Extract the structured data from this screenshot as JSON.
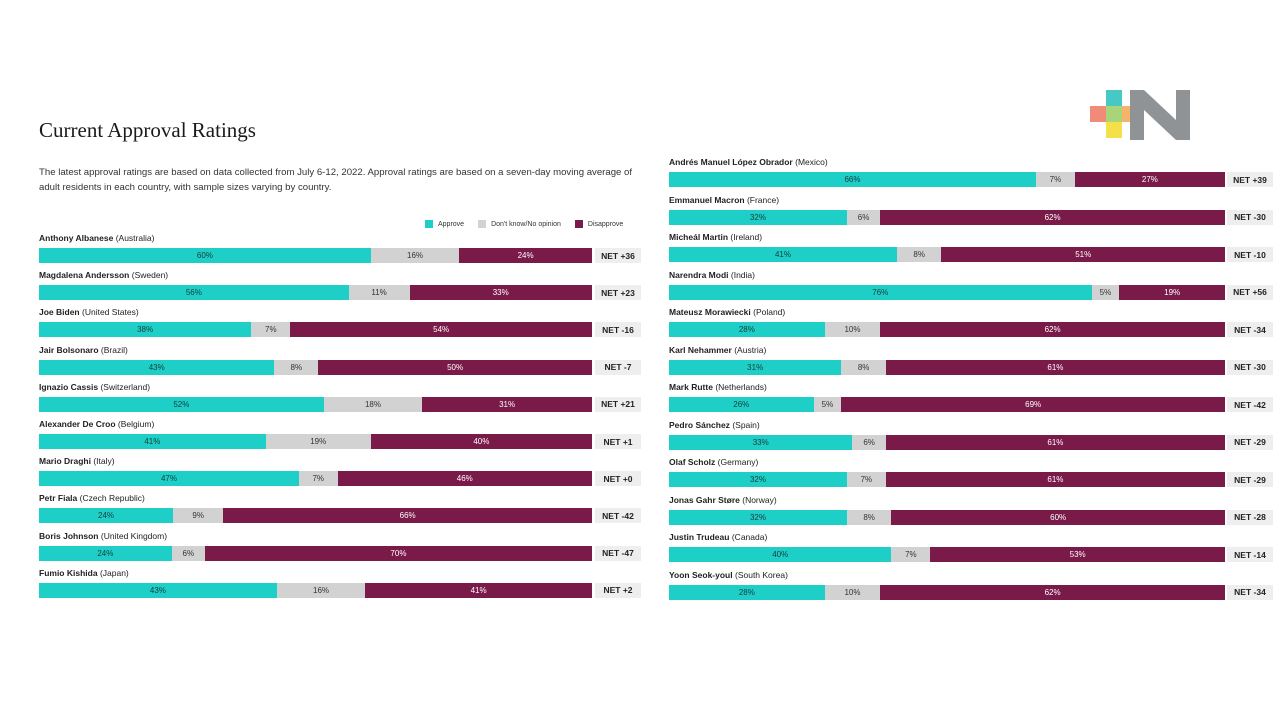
{
  "title": "Current Approval Ratings",
  "description": "The latest approval ratings are based on data collected from July 6-12, 2022. Approval ratings are based on a seven-day moving average of adult residents in each country, with sample sizes varying by country.",
  "legend": [
    {
      "label": "Approve",
      "color": "#1ecfc7"
    },
    {
      "label": "Don't know/No opinion",
      "color": "#d2d2d2"
    },
    {
      "label": "Disapprove",
      "color": "#7a1a48"
    }
  ],
  "colors": {
    "approve": "#1ecfc7",
    "neutral": "#d2d2d2",
    "disapprove": "#7a1a48",
    "net_bg": "#eeeeee"
  },
  "logo": {
    "text": "N",
    "icon": "plus-mosaic-n-logo"
  },
  "chart_data": {
    "type": "bar",
    "stacked": true,
    "orientation": "horizontal",
    "series_names": [
      "Approve",
      "Don't know/No opinion",
      "Disapprove"
    ],
    "columns": [
      {
        "rows": [
          {
            "name": "Anthony Albanese",
            "country": "(Australia)",
            "approve": 60,
            "neutral": 16,
            "disapprove": 24,
            "net": "NET +36"
          },
          {
            "name": "Magdalena Andersson",
            "country": "(Sweden)",
            "approve": 56,
            "neutral": 11,
            "disapprove": 33,
            "net": "NET +23"
          },
          {
            "name": "Joe Biden",
            "country": "(United States)",
            "approve": 38,
            "neutral": 7,
            "disapprove": 54,
            "net": "NET -16"
          },
          {
            "name": "Jair Bolsonaro",
            "country": "(Brazil)",
            "approve": 43,
            "neutral": 8,
            "disapprove": 50,
            "net": "NET -7"
          },
          {
            "name": "Ignazio Cassis",
            "country": "(Switzerland)",
            "approve": 52,
            "neutral": 18,
            "disapprove": 31,
            "net": "NET +21"
          },
          {
            "name": "Alexander De Croo",
            "country": "(Belgium)",
            "approve": 41,
            "neutral": 19,
            "disapprove": 40,
            "net": "NET +1"
          },
          {
            "name": "Mario Draghi",
            "country": "(Italy)",
            "approve": 47,
            "neutral": 7,
            "disapprove": 46,
            "net": "NET +0"
          },
          {
            "name": "Petr Fiala",
            "country": "(Czech Republic)",
            "approve": 24,
            "neutral": 9,
            "disapprove": 66,
            "net": "NET -42"
          },
          {
            "name": "Boris Johnson",
            "country": "(United Kingdom)",
            "approve": 24,
            "neutral": 6,
            "disapprove": 70,
            "net": "NET -47"
          },
          {
            "name": "Fumio Kishida",
            "country": "(Japan)",
            "approve": 43,
            "neutral": 16,
            "disapprove": 41,
            "net": "NET +2"
          }
        ]
      },
      {
        "rows": [
          {
            "name": "Andrés Manuel López Obrador",
            "country": "(Mexico)",
            "approve": 66,
            "neutral": 7,
            "disapprove": 27,
            "net": "NET +39"
          },
          {
            "name": "Emmanuel Macron",
            "country": "(France)",
            "approve": 32,
            "neutral": 6,
            "disapprove": 62,
            "net": "NET -30"
          },
          {
            "name": "Micheál Martin",
            "country": "(Ireland)",
            "approve": 41,
            "neutral": 8,
            "disapprove": 51,
            "net": "NET -10"
          },
          {
            "name": "Narendra Modi",
            "country": "(India)",
            "approve": 76,
            "neutral": 5,
            "disapprove": 19,
            "net": "NET +56"
          },
          {
            "name": "Mateusz Morawiecki",
            "country": "(Poland)",
            "approve": 28,
            "neutral": 10,
            "disapprove": 62,
            "net": "NET -34"
          },
          {
            "name": "Karl Nehammer",
            "country": "(Austria)",
            "approve": 31,
            "neutral": 8,
            "disapprove": 61,
            "net": "NET -30"
          },
          {
            "name": "Mark Rutte",
            "country": "(Netherlands)",
            "approve": 26,
            "neutral": 5,
            "disapprove": 69,
            "net": "NET -42"
          },
          {
            "name": "Pedro Sánchez",
            "country": "(Spain)",
            "approve": 33,
            "neutral": 6,
            "disapprove": 61,
            "net": "NET -29"
          },
          {
            "name": "Olaf Scholz",
            "country": "(Germany)",
            "approve": 32,
            "neutral": 7,
            "disapprove": 61,
            "net": "NET -29"
          },
          {
            "name": "Jonas Gahr Støre",
            "country": "(Norway)",
            "approve": 32,
            "neutral": 8,
            "disapprove": 60,
            "net": "NET -28"
          },
          {
            "name": "Justin Trudeau",
            "country": "(Canada)",
            "approve": 40,
            "neutral": 7,
            "disapprove": 53,
            "net": "NET -14"
          },
          {
            "name": "Yoon Seok-youl",
            "country": "(South Korea)",
            "approve": 28,
            "neutral": 10,
            "disapprove": 62,
            "net": "NET -34"
          }
        ]
      }
    ]
  }
}
